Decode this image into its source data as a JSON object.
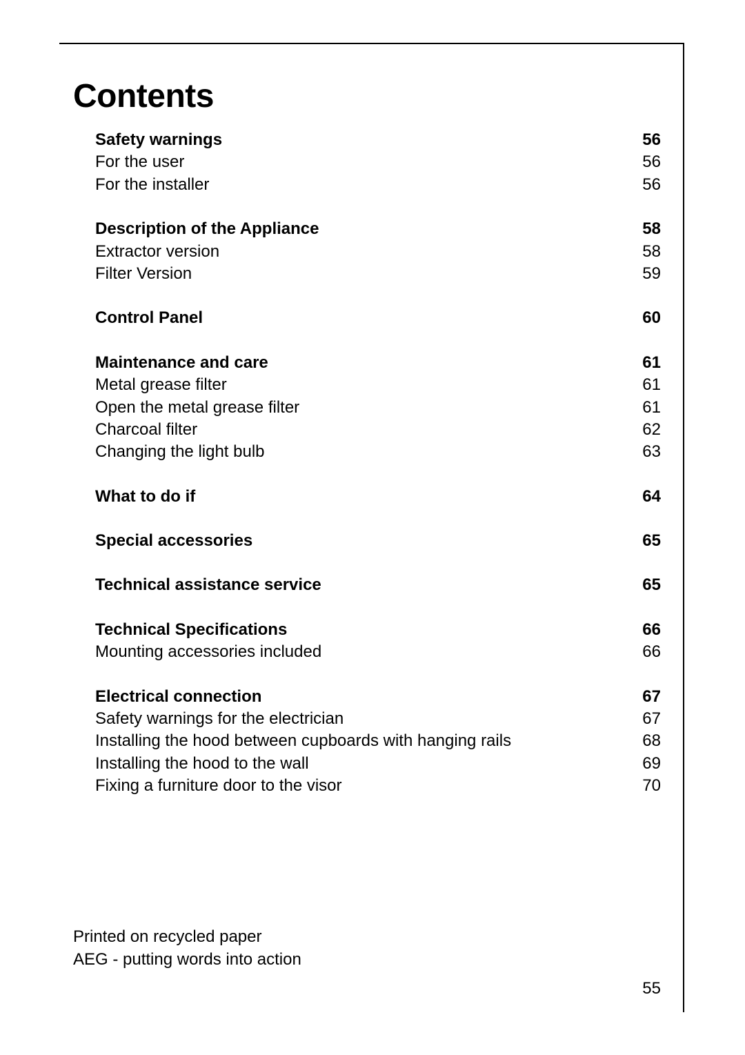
{
  "title": "Contents",
  "toc_label_fontsize": 24,
  "title_fontsize": 48,
  "colors": {
    "text": "#000000",
    "background": "#ffffff",
    "border": "#000000"
  },
  "sections": [
    {
      "heading": {
        "label": "Safety warnings",
        "page": "56"
      },
      "items": [
        {
          "label": "For the user",
          "page": "56"
        },
        {
          "label": "For the installer",
          "page": "56"
        }
      ]
    },
    {
      "heading": {
        "label": "Description of the Appliance",
        "page": "58"
      },
      "items": [
        {
          "label": "Extractor version",
          "page": "58"
        },
        {
          "label": "Filter Version",
          "page": "59"
        }
      ]
    },
    {
      "heading": {
        "label": "Control Panel",
        "page": "60"
      },
      "items": []
    },
    {
      "heading": {
        "label": "Maintenance and care",
        "page": "61"
      },
      "items": [
        {
          "label": "Metal grease filter",
          "page": "61"
        },
        {
          "label": "Open the metal grease filter",
          "page": "61"
        },
        {
          "label": "Charcoal filter",
          "page": "62"
        },
        {
          "label": "Changing the light bulb",
          "page": "63"
        }
      ]
    },
    {
      "heading": {
        "label": "What to do if",
        "page": "64"
      },
      "items": []
    },
    {
      "heading": {
        "label": "Special accessories",
        "page": "65"
      },
      "items": []
    },
    {
      "heading": {
        "label": "Technical assistance service",
        "page": "65"
      },
      "items": []
    },
    {
      "heading": {
        "label": "Technical Specifications",
        "page": "66"
      },
      "items": [
        {
          "label": "Mounting accessories included",
          "page": "66"
        }
      ]
    },
    {
      "heading": {
        "label": "Electrical connection",
        "page": "67"
      },
      "items": [
        {
          "label": "Safety warnings for the electrician",
          "page": "67"
        },
        {
          "label": "Installing the hood between cupboards with hanging rails",
          "page": "68"
        },
        {
          "label": "Installing the hood to the wall",
          "page": "69"
        },
        {
          "label": "Fixing a furniture door to the visor",
          "page": "70"
        }
      ]
    }
  ],
  "footer": {
    "line1": "Printed on recycled paper",
    "line2": "AEG - putting words into action"
  },
  "page_number": "55"
}
